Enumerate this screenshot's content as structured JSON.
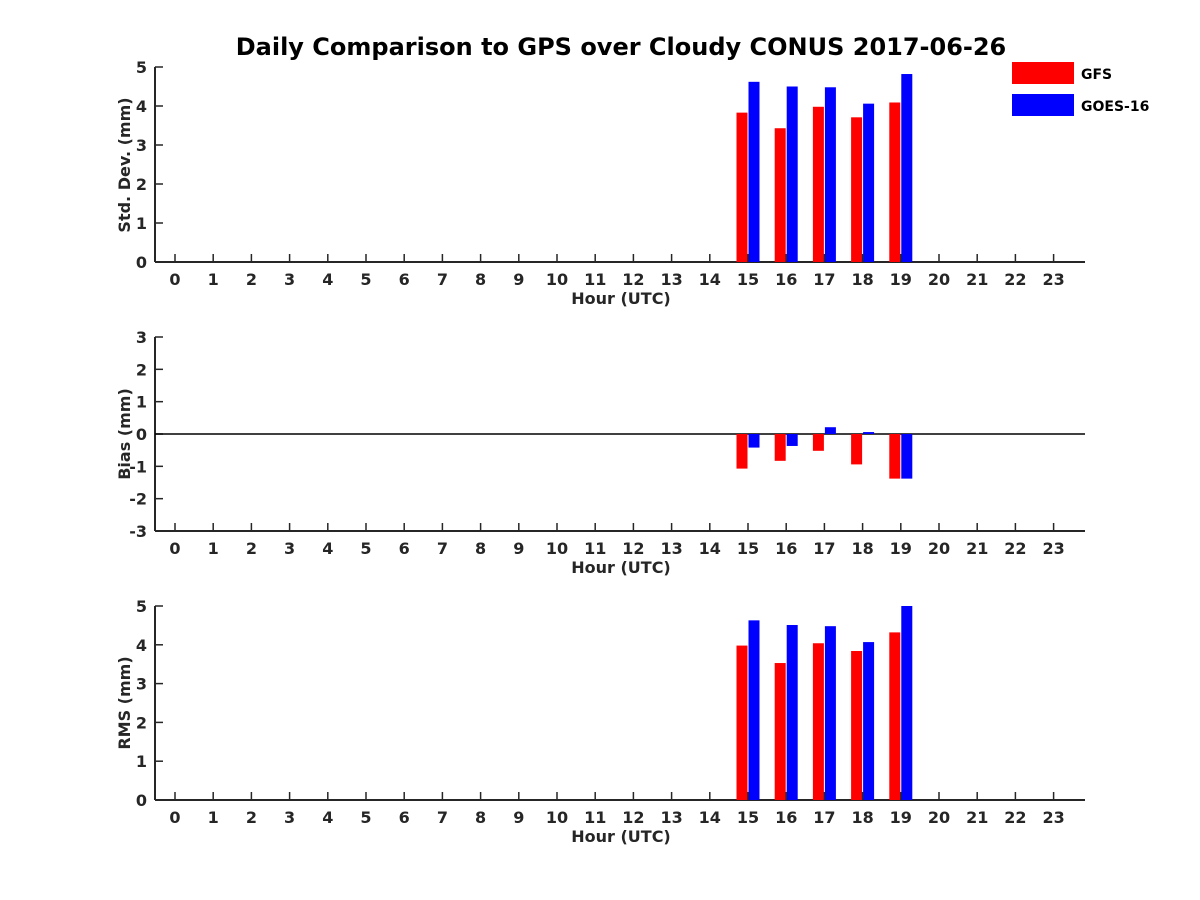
{
  "title": "Daily Comparison to GPS over Cloudy CONUS 2017-06-26",
  "legend": {
    "position": "top-right",
    "items": [
      {
        "name": "GFS",
        "color": "#ff0000"
      },
      {
        "name": "GOES-16",
        "color": "#0000ff"
      }
    ]
  },
  "chart_data": [
    {
      "type": "bar",
      "xlabel": "Hour (UTC)",
      "ylabel": "Std. Dev. (mm)",
      "ylim": [
        0,
        5
      ],
      "yticks": [
        0,
        1,
        2,
        3,
        4,
        5
      ],
      "categories": [
        "0",
        "1",
        "2",
        "3",
        "4",
        "5",
        "6",
        "7",
        "8",
        "9",
        "10",
        "11",
        "12",
        "13",
        "14",
        "15",
        "16",
        "17",
        "18",
        "19",
        "20",
        "21",
        "22",
        "23"
      ],
      "series": [
        {
          "name": "GFS",
          "color": "#ff0000",
          "values": [
            null,
            null,
            null,
            null,
            null,
            null,
            null,
            null,
            null,
            null,
            null,
            null,
            null,
            null,
            null,
            3.83,
            3.43,
            3.98,
            3.71,
            4.09,
            null,
            null,
            null,
            null
          ]
        },
        {
          "name": "GOES-16",
          "color": "#0000ff",
          "values": [
            null,
            null,
            null,
            null,
            null,
            null,
            null,
            null,
            null,
            null,
            null,
            null,
            null,
            null,
            null,
            4.62,
            4.5,
            4.48,
            4.06,
            4.82,
            null,
            null,
            null,
            null
          ]
        }
      ],
      "grid": false
    },
    {
      "type": "bar",
      "xlabel": "Hour (UTC)",
      "ylabel": "Bias (mm)",
      "ylim": [
        -3,
        3
      ],
      "yticks": [
        -3,
        -2,
        -1,
        0,
        1,
        2,
        3
      ],
      "zero_line": true,
      "categories": [
        "0",
        "1",
        "2",
        "3",
        "4",
        "5",
        "6",
        "7",
        "8",
        "9",
        "10",
        "11",
        "12",
        "13",
        "14",
        "15",
        "16",
        "17",
        "18",
        "19",
        "20",
        "21",
        "22",
        "23"
      ],
      "series": [
        {
          "name": "GFS",
          "color": "#ff0000",
          "values": [
            null,
            null,
            null,
            null,
            null,
            null,
            null,
            null,
            null,
            null,
            null,
            null,
            null,
            null,
            null,
            -1.07,
            -0.83,
            -0.52,
            -0.94,
            -1.38,
            null,
            null,
            null,
            null
          ]
        },
        {
          "name": "GOES-16",
          "color": "#0000ff",
          "values": [
            null,
            null,
            null,
            null,
            null,
            null,
            null,
            null,
            null,
            null,
            null,
            null,
            null,
            null,
            null,
            -0.42,
            -0.37,
            0.21,
            0.06,
            -1.38,
            null,
            null,
            null,
            null
          ]
        }
      ],
      "grid": false
    },
    {
      "type": "bar",
      "xlabel": "Hour (UTC)",
      "ylabel": "RMS (mm)",
      "ylim": [
        0,
        5
      ],
      "yticks": [
        0,
        1,
        2,
        3,
        4,
        5
      ],
      "categories": [
        "0",
        "1",
        "2",
        "3",
        "4",
        "5",
        "6",
        "7",
        "8",
        "9",
        "10",
        "11",
        "12",
        "13",
        "14",
        "15",
        "16",
        "17",
        "18",
        "19",
        "20",
        "21",
        "22",
        "23"
      ],
      "series": [
        {
          "name": "GFS",
          "color": "#ff0000",
          "values": [
            null,
            null,
            null,
            null,
            null,
            null,
            null,
            null,
            null,
            null,
            null,
            null,
            null,
            null,
            null,
            3.98,
            3.53,
            4.04,
            3.84,
            4.32,
            null,
            null,
            null,
            null
          ]
        },
        {
          "name": "GOES-16",
          "color": "#0000ff",
          "values": [
            null,
            null,
            null,
            null,
            null,
            null,
            null,
            null,
            null,
            null,
            null,
            null,
            null,
            null,
            null,
            4.63,
            4.51,
            4.48,
            4.07,
            5.0,
            null,
            null,
            null,
            null
          ]
        }
      ],
      "grid": false
    }
  ]
}
